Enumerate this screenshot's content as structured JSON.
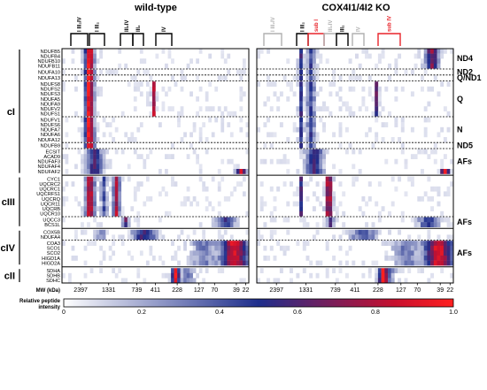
{
  "chart_data": {
    "type": "heatmap",
    "panels": [
      {
        "title": "wild-type",
        "complex_brackets": [
          {
            "label": "I III₂IV",
            "color": "#000000"
          },
          {
            "label": "I III₂",
            "color": "#000000"
          },
          {
            "label": "III₂IV",
            "color": "#000000"
          },
          {
            "label": "III₂",
            "color": "#000000"
          },
          {
            "label": "IV",
            "color": "#000000"
          }
        ]
      },
      {
        "title": "COX4I1/4I2 KO",
        "complex_brackets": [
          {
            "label": "I III₂IV",
            "color": "#b0b0b0"
          },
          {
            "label": "I III₂",
            "color": "#000000"
          },
          {
            "label": "sub I",
            "color": "#e8242a"
          },
          {
            "label": "III₂IV",
            "color": "#b0b0b0"
          },
          {
            "label": "III₂",
            "color": "#000000"
          },
          {
            "label": "IV",
            "color": "#b0b0b0"
          },
          {
            "label": "sub IV",
            "color": "#e8242a"
          }
        ]
      }
    ],
    "xlabel": "MW (kDa)",
    "x_ticks": [
      "2397",
      "1331",
      "739",
      "411",
      "228",
      "127",
      "70",
      "39",
      "22"
    ],
    "groups": [
      {
        "complex": "cI",
        "subgroups": [
          {
            "label": "ND4",
            "genes": [
              "NDUFB5",
              "NDUFB4",
              "NDUFB10",
              "NDUFB11"
            ]
          },
          {
            "label": "ND2",
            "genes": [
              "NDUFA10"
            ]
          },
          {
            "label": "Q/ND1",
            "genes": [
              "NDUFA13"
            ]
          },
          {
            "label": "Q",
            "genes": [
              "NDUFS8",
              "NDUFS2",
              "NDUFS3",
              "NDUFA5",
              "NDUFA9",
              "NDUFV2",
              "NDUFS1"
            ]
          },
          {
            "label": "N",
            "genes": [
              "NDUFV1",
              "NDUFS6",
              "NDUFA7",
              "NDUFA6",
              "NDUFA12"
            ]
          },
          {
            "label": "ND5",
            "genes": [
              "NDUFB9"
            ]
          },
          {
            "label": "AFs",
            "genes": [
              "ECSIT",
              "ACAD9",
              "NDUFAF3",
              "NDUFAF4",
              "NDUFAF2"
            ]
          }
        ]
      },
      {
        "complex": "cIII",
        "subgroups": [
          {
            "label": "",
            "genes": [
              "CYC1",
              "UQCRC2",
              "UQCRC1",
              "UQCRFS1",
              "UQCRQ",
              "UQCR11",
              "UQCRB",
              "UQCR10"
            ]
          },
          {
            "label": "AFs",
            "genes": [
              "UQCC3",
              "BCS1L"
            ]
          }
        ]
      },
      {
        "complex": "cIV",
        "subgroups": [
          {
            "label": "",
            "genes": [
              "COX5B",
              "NDUFA4"
            ]
          },
          {
            "label": "AFs",
            "genes": [
              "COA3",
              "SCO1",
              "SCO2",
              "HIGD1A",
              "HIGD2A"
            ]
          }
        ]
      },
      {
        "complex": "cII",
        "subgroups": [
          {
            "label": "",
            "genes": [
              "SDHA",
              "SDHB",
              "SDHC"
            ]
          }
        ]
      }
    ],
    "colorbar": {
      "label": "Relative peptide intensity",
      "min": 0,
      "max": 1,
      "ticks": [
        "0",
        "0.2",
        "0.4",
        "0.6",
        "0.8",
        "1.0"
      ],
      "colors": [
        "#ffffff",
        "#1e2e8c",
        "#c8102e",
        "#ff2020"
      ]
    }
  }
}
